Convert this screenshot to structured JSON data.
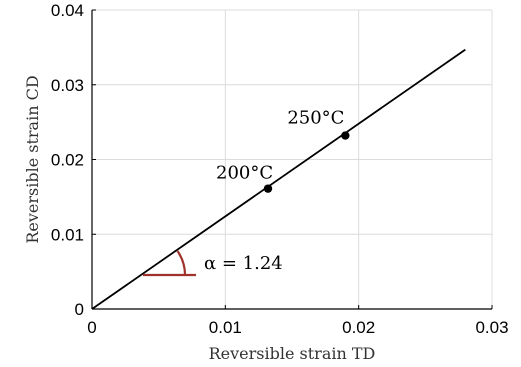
{
  "chart_data": {
    "type": "line",
    "xlabel": "Reversible strain TD",
    "ylabel": "Reversible strain CD",
    "xlim": [
      0,
      0.03
    ],
    "ylim": [
      0,
      0.04
    ],
    "x_ticks": [
      0,
      0.01,
      0.02,
      0.03
    ],
    "x_tick_labels": [
      "0",
      "0.01",
      "0.02",
      "0.03"
    ],
    "y_ticks": [
      0,
      0.01,
      0.02,
      0.03,
      0.04
    ],
    "y_tick_labels": [
      "0",
      "0.01",
      "0.02",
      "0.03",
      "0.04"
    ],
    "grid": true,
    "series": [
      {
        "x": [
          0,
          0.028
        ],
        "y": [
          0,
          0.0347
        ],
        "color": "#000000"
      }
    ],
    "points": [
      {
        "label": "200°C",
        "x": 0.0132,
        "y": 0.0161
      },
      {
        "label": "250°C",
        "x": 0.019,
        "y": 0.0232
      }
    ],
    "angle_annotation": {
      "label": "α = 1.24",
      "color": "#a0322b"
    }
  }
}
